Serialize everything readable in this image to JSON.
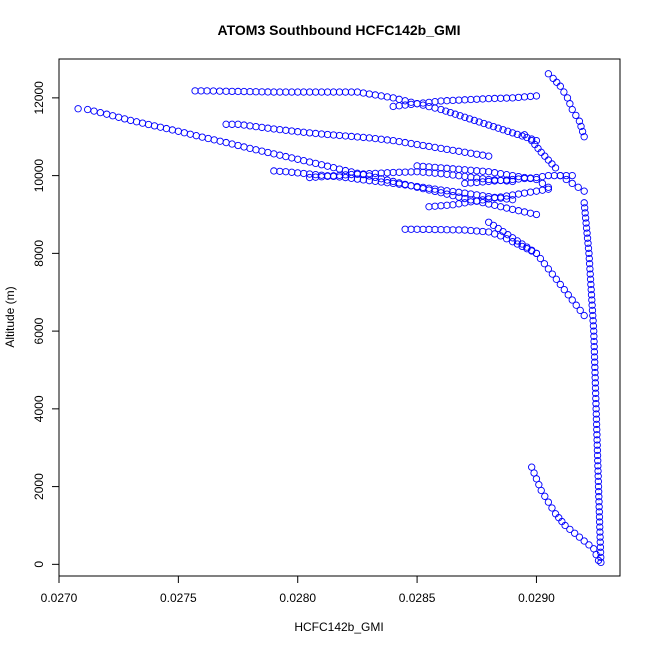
{
  "chart_data": {
    "type": "scatter",
    "title": "ATOM3 Southbound HCFC142b_GMI",
    "xlabel": "HCFC142b_GMI",
    "ylabel": "Altitude (m)",
    "xlim": [
      0.027,
      0.02935
    ],
    "ylim": [
      -300,
      13000
    ],
    "xticks": [
      0.027,
      0.0275,
      0.028,
      0.0285,
      0.029
    ],
    "xtick_labels": [
      "0.0270",
      "0.0275",
      "0.0280",
      "0.0285",
      "0.0290"
    ],
    "yticks": [
      0,
      2000,
      4000,
      6000,
      8000,
      10000,
      12000
    ],
    "ytick_labels": [
      "0",
      "2000",
      "4000",
      "6000",
      "8000",
      "10000",
      "12000"
    ],
    "grid": false,
    "legend": "none",
    "marker": "open-circle",
    "color": "#0000ff",
    "series": [
      {
        "x": [
          0.02708,
          0.02712,
          0.0272,
          0.0273,
          0.0274,
          0.0275,
          0.0276,
          0.0277,
          0.0278,
          0.0279,
          0.028,
          0.0281,
          0.0282,
          0.0283,
          0.0284,
          0.0285,
          0.0286,
          0.0287,
          0.0288,
          0.0289,
          0.029
        ],
        "y": [
          11720,
          11700,
          11580,
          11420,
          11280,
          11140,
          10990,
          10850,
          10700,
          10560,
          10420,
          10280,
          10130,
          9990,
          9850,
          9700,
          9560,
          9410,
          9270,
          9130,
          9000
        ]
      },
      {
        "x": [
          0.02757,
          0.02762,
          0.0277,
          0.0278,
          0.0279,
          0.028,
          0.0281,
          0.0282,
          0.02825,
          0.0283,
          0.0284,
          0.0285,
          0.0286,
          0.0287,
          0.0288,
          0.0289,
          0.029
        ],
        "y": [
          12180,
          12180,
          12170,
          12160,
          12150,
          12150,
          12150,
          12150,
          12150,
          12100,
          12000,
          11850,
          11700,
          11500,
          11300,
          11100,
          10900
        ]
      },
      {
        "x": [
          0.0284,
          0.0285,
          0.0286,
          0.0287,
          0.0288,
          0.0289,
          0.029
        ],
        "y": [
          11780,
          11850,
          11920,
          11950,
          11980,
          12000,
          12050
        ]
      },
      {
        "x": [
          0.0277,
          0.02775,
          0.0278,
          0.0279,
          0.028,
          0.0281,
          0.0282,
          0.0283,
          0.0284,
          0.0285,
          0.0286,
          0.0287,
          0.0288
        ],
        "y": [
          11320,
          11320,
          11280,
          11200,
          11130,
          11070,
          11020,
          10970,
          10900,
          10800,
          10700,
          10600,
          10500
        ]
      },
      {
        "x": [
          0.0279,
          0.02795,
          0.028,
          0.0281,
          0.0282,
          0.0283,
          0.0284,
          0.0285,
          0.0286,
          0.0287,
          0.0288,
          0.0289
        ],
        "y": [
          10120,
          10100,
          10070,
          10010,
          9950,
          9870,
          9800,
          9720,
          9630,
          9550,
          9460,
          9380
        ]
      },
      {
        "x": [
          0.02805,
          0.0281,
          0.0282,
          0.0283,
          0.0284,
          0.0285,
          0.0286,
          0.0287,
          0.0288,
          0.0289
        ],
        "y": [
          9950,
          9970,
          10020,
          10050,
          10080,
          10100,
          10050,
          9980,
          9900,
          9850
        ]
      },
      {
        "x": [
          0.02845,
          0.0285,
          0.0286,
          0.0287,
          0.0288,
          0.02885,
          0.0289,
          0.029
        ],
        "y": [
          8620,
          8620,
          8610,
          8600,
          8550,
          8450,
          8300,
          8000
        ]
      },
      {
        "x": [
          0.0285,
          0.0286,
          0.0287,
          0.0288,
          0.0289,
          0.029,
          0.02905
        ],
        "y": [
          10250,
          10200,
          10150,
          10100,
          10000,
          9900,
          9700
        ]
      },
      {
        "x": [
          0.02855,
          0.02865,
          0.02875,
          0.02885,
          0.02895,
          0.02905
        ],
        "y": [
          9200,
          9250,
          9350,
          9450,
          9550,
          9650
        ]
      },
      {
        "x": [
          0.0287,
          0.0288,
          0.0289,
          0.029,
          0.02905,
          0.0291,
          0.02915
        ],
        "y": [
          9800,
          9850,
          9900,
          9950,
          10000,
          10000,
          10000
        ]
      },
      {
        "x": [
          0.0288,
          0.0289,
          0.029,
          0.02905,
          0.0291,
          0.02915,
          0.0292
        ],
        "y": [
          8800,
          8400,
          8000,
          7600,
          7200,
          6800,
          6400
        ]
      },
      {
        "x": [
          0.02895,
          0.02898,
          0.02902,
          0.02905,
          0.02908,
          0.0291,
          0.02915,
          0.0292
        ],
        "y": [
          11050,
          10900,
          10600,
          10400,
          10200,
          10000,
          9800,
          9600
        ]
      },
      {
        "x": [
          0.02905,
          0.02907,
          0.0291,
          0.02913,
          0.02915,
          0.02918,
          0.0292
        ],
        "y": [
          12620,
          12500,
          12300,
          12000,
          11700,
          11400,
          11000
        ]
      },
      {
        "x": [
          0.0292,
          0.02922,
          0.02924,
          0.02925,
          0.02926,
          0.02927
        ],
        "y": [
          9300,
          8000,
          6000,
          4000,
          2000,
          50
        ]
      },
      {
        "x": [
          0.02898,
          0.029,
          0.02902,
          0.02905,
          0.02908,
          0.02912,
          0.02916,
          0.0292,
          0.02924,
          0.02926
        ],
        "y": [
          2500,
          2200,
          1900,
          1600,
          1300,
          1000,
          800,
          600,
          400,
          100
        ]
      }
    ]
  }
}
